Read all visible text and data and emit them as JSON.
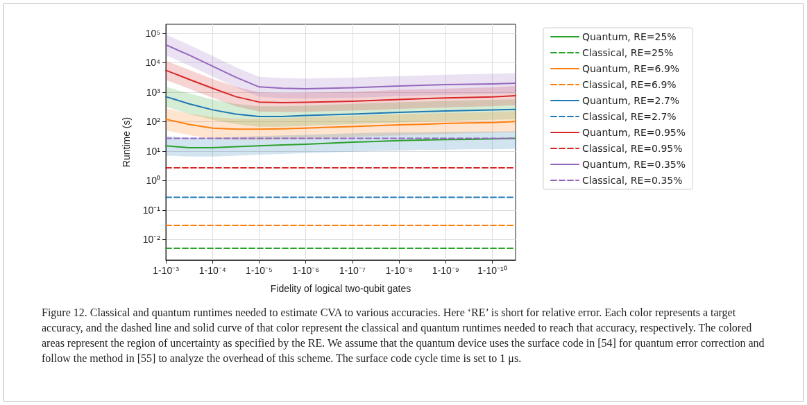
{
  "chart_data": {
    "type": "line",
    "xlabel": "Fidelity of logical two-qubit gates",
    "ylabel": "Runtime (s)",
    "categories": [
      "1-10⁻³",
      null,
      "1-10⁻⁴",
      null,
      "1-10⁻⁵",
      null,
      "1-10⁻⁶",
      null,
      "1-10⁻⁷",
      null,
      "1-10⁻⁸",
      null,
      "1-10⁻⁹",
      null,
      "1-10⁻¹⁰",
      null
    ],
    "ylim": [
      0.002,
      200000
    ],
    "yticks": [
      {
        "value": 0.01,
        "label": "10⁻²"
      },
      {
        "value": 0.1,
        "label": "10⁻¹"
      },
      {
        "value": 1,
        "label": "10⁰"
      },
      {
        "value": 10,
        "label": "10¹"
      },
      {
        "value": 100,
        "label": "10²"
      },
      {
        "value": 1000,
        "label": "10³"
      },
      {
        "value": 10000,
        "label": "10⁴"
      },
      {
        "value": 100000,
        "label": "10⁵"
      }
    ],
    "log": "y",
    "grid": true,
    "legend": "right",
    "marker": "none",
    "series": [
      {
        "name": "Quantum, RE=25%",
        "color": "#2ca02c",
        "line_style": "solid",
        "values": [
          15,
          13,
          13,
          14,
          15,
          16,
          17,
          18.5,
          20,
          21,
          22.5,
          23.5,
          24.5,
          25,
          26,
          27
        ],
        "upper": [
          1500,
          900,
          560,
          400,
          330,
          330,
          350,
          375,
          400,
          425,
          450,
          475,
          500,
          525,
          550,
          570
        ],
        "lower": [
          320,
          180,
          115,
          82,
          67,
          67,
          72,
          77,
          82,
          88,
          93,
          99,
          105,
          110,
          115,
          120
        ]
      },
      {
        "name": "Classical, RE=25%",
        "color": "#2ca02c",
        "line_style": "dashed",
        "values": [
          0.005,
          0.005,
          0.005,
          0.005,
          0.005,
          0.005,
          0.005,
          0.005,
          0.005,
          0.005,
          0.005,
          0.005,
          0.005,
          0.005,
          0.005,
          0.005
        ]
      },
      {
        "name": "Quantum, RE=6.9%",
        "color": "#ff7f0e",
        "line_style": "solid",
        "values": [
          120,
          80,
          60,
          55,
          55,
          57,
          60,
          64,
          68,
          72,
          77,
          81,
          86,
          90,
          93,
          100
        ],
        "upper": [
          280,
          185,
          140,
          125,
          125,
          130,
          140,
          148,
          155,
          165,
          175,
          185,
          195,
          200,
          210,
          225
        ],
        "lower": [
          50,
          35,
          26,
          24,
          24,
          25,
          26,
          28,
          30,
          32,
          34,
          36,
          38,
          40,
          41,
          44
        ]
      },
      {
        "name": "Classical, RE=6.9%",
        "color": "#ff7f0e",
        "line_style": "dashed",
        "values": [
          0.03,
          0.03,
          0.03,
          0.03,
          0.03,
          0.03,
          0.03,
          0.03,
          0.03,
          0.03,
          0.03,
          0.03,
          0.03,
          0.03,
          0.03,
          0.03
        ]
      },
      {
        "name": "Quantum, RE=2.7%",
        "color": "#1f77b4",
        "line_style": "solid",
        "values": [
          700,
          400,
          250,
          180,
          148,
          148,
          160,
          170,
          180,
          192,
          205,
          218,
          230,
          240,
          250,
          260
        ],
        "upper": [
          32,
          28,
          28,
          30,
          32,
          34,
          36,
          38,
          40,
          42,
          43,
          44,
          45,
          46,
          46,
          47
        ],
        "lower": [
          7,
          6.5,
          6.5,
          7,
          7.5,
          8,
          8.5,
          9,
          9.5,
          10,
          10.5,
          11,
          11,
          11.5,
          11.5,
          12
        ]
      },
      {
        "name": "Classical, RE=2.7%",
        "color": "#1f77b4",
        "line_style": "dashed",
        "values": [
          0.27,
          0.27,
          0.27,
          0.27,
          0.27,
          0.27,
          0.27,
          0.27,
          0.27,
          0.27,
          0.27,
          0.27,
          0.27,
          0.27,
          0.27,
          0.27
        ]
      },
      {
        "name": "Quantum, RE=0.95%",
        "color": "#d62728",
        "line_style": "solid",
        "values": [
          5500,
          2700,
          1350,
          700,
          460,
          440,
          450,
          470,
          490,
          520,
          560,
          600,
          630,
          660,
          690,
          750
        ],
        "upper": [
          11500,
          5700,
          2800,
          1500,
          970,
          920,
          950,
          990,
          1030,
          1100,
          1200,
          1250,
          1300,
          1380,
          1450,
          1600
        ],
        "lower": [
          2600,
          1300,
          640,
          330,
          220,
          210,
          215,
          225,
          235,
          250,
          270,
          285,
          300,
          315,
          330,
          360
        ]
      },
      {
        "name": "Classical, RE=0.95%",
        "color": "#d62728",
        "line_style": "dashed",
        "values": [
          2.7,
          2.7,
          2.7,
          2.7,
          2.7,
          2.7,
          2.7,
          2.7,
          2.7,
          2.7,
          2.7,
          2.7,
          2.7,
          2.7,
          2.7,
          2.7
        ]
      },
      {
        "name": "Quantum, RE=0.35%",
        "color": "#9467bd",
        "line_style": "solid",
        "values": [
          40000,
          18000,
          7600,
          3200,
          1500,
          1350,
          1300,
          1350,
          1400,
          1500,
          1600,
          1700,
          1800,
          1850,
          1900,
          2000
        ],
        "upper": [
          90000,
          40000,
          17000,
          7000,
          3300,
          3000,
          2900,
          3000,
          3100,
          3300,
          3500,
          3700,
          3900,
          4050,
          4200,
          4400
        ],
        "lower": [
          18000,
          8000,
          3400,
          1450,
          700,
          620,
          600,
          620,
          640,
          680,
          730,
          760,
          800,
          830,
          860,
          900
        ]
      },
      {
        "name": "Classical, RE=0.35%",
        "color": "#9467bd",
        "line_style": "dashed",
        "values": [
          27,
          27,
          27,
          27,
          27,
          27,
          27,
          27,
          27,
          27,
          27,
          27,
          27,
          27,
          27,
          27
        ]
      }
    ],
    "annotations": [
      "Figure 12. Classical and quantum runtimes needed to estimate CVA to various accuracies. Here ‘RE’ is short for relative error. Each color represents a target accuracy, and the dashed line and solid curve of that color represent the classical and quantum runtimes needed to reach that accuracy, respectively. The colored areas represent the region of uncertainty as specified by the RE. We assume that the quantum device uses the surface code in [54] for quantum error correction and follow the method in [55] to analyze the overhead of this scheme. The surface code cycle time is set to 1 μs."
    ]
  }
}
